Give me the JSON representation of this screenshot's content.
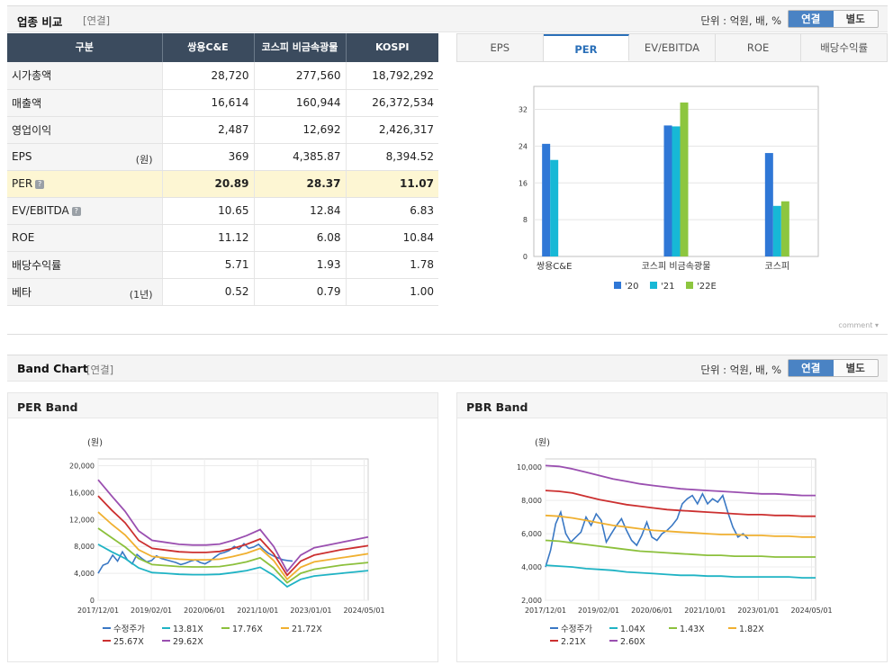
{
  "compare": {
    "title": "업종 비교",
    "tag": "[연결]",
    "unit": "단위 : 억원, 배, %",
    "toggle": [
      "연결",
      "별도"
    ],
    "headers": [
      "구분",
      "쌍용C&E",
      "코스피 비금속광물",
      "KOSPI"
    ],
    "rows": [
      {
        "label": "시가총액",
        "unit": "",
        "v": [
          "28,720",
          "277,560",
          "18,792,292"
        ]
      },
      {
        "label": "매출액",
        "unit": "",
        "v": [
          "16,614",
          "160,944",
          "26,372,534"
        ]
      },
      {
        "label": "영업이익",
        "unit": "",
        "v": [
          "2,487",
          "12,692",
          "2,426,317"
        ]
      },
      {
        "label": "EPS",
        "unit": "(원)",
        "v": [
          "369",
          "4,385.87",
          "8,394.52"
        ]
      },
      {
        "label": "PER",
        "unit": "",
        "v": [
          "20.89",
          "28.37",
          "11.07"
        ],
        "hl": true,
        "q": true
      },
      {
        "label": "EV/EBITDA",
        "unit": "",
        "v": [
          "10.65",
          "12.84",
          "6.83"
        ],
        "q": true
      },
      {
        "label": "ROE",
        "unit": "",
        "v": [
          "11.12",
          "6.08",
          "10.84"
        ]
      },
      {
        "label": "배당수익률",
        "unit": "",
        "v": [
          "5.71",
          "1.93",
          "1.78"
        ]
      },
      {
        "label": "베타",
        "unit": "(1년)",
        "v": [
          "0.52",
          "0.79",
          "1.00"
        ]
      }
    ],
    "tabs": [
      "EPS",
      "PER",
      "EV/EBITDA",
      "ROE",
      "배당수익률"
    ],
    "active_tab": "PER",
    "comment": "comment"
  },
  "chart_data": [
    {
      "type": "bar",
      "title": "PER",
      "categories": [
        "쌍용C&E",
        "코스피 비금속광물",
        "코스피"
      ],
      "series": [
        {
          "name": "'20",
          "color": "#2f77d6",
          "values": [
            24.5,
            28.5,
            22.5
          ]
        },
        {
          "name": "'21",
          "color": "#17b8d6",
          "values": [
            21,
            28.3,
            11
          ]
        },
        {
          "name": "'22E",
          "color": "#8dc63f",
          "values": [
            null,
            33.5,
            12
          ]
        }
      ],
      "yticks": [
        0,
        8,
        16,
        24,
        32
      ],
      "ylim": [
        0,
        37
      ]
    },
    {
      "type": "line",
      "title": "PER Band",
      "ylabel": "(원)",
      "xticks": [
        "2017/12/01",
        "2019/02/01",
        "2020/06/01",
        "2021/10/01",
        "2023/01/01",
        "2024/05/01"
      ],
      "yticks": [
        "0",
        "4,000",
        "8,000",
        "12,000",
        "16,000",
        "20,000"
      ],
      "ylim": [
        0,
        21000
      ],
      "series": [
        {
          "name": "수정주가",
          "color": "#3a78c4",
          "values": [
            4000,
            5200,
            5500,
            6700,
            5800,
            7200,
            6000,
            5400,
            6800,
            6200,
            5700,
            5900,
            6600,
            6200,
            6000,
            5800,
            5600,
            5300,
            5500,
            5800,
            6000,
            5600,
            5400,
            5800,
            6400,
            6900,
            7100,
            7400,
            8000,
            7600,
            8400,
            7700,
            7900,
            8300,
            7600,
            7000,
            6600,
            6300,
            6000,
            5900,
            5800
          ]
        },
        {
          "name": "13.81X",
          "color": "#1fb3c4",
          "values": [
            8300,
            7200,
            6200,
            4800,
            4100,
            4000,
            3850,
            3800,
            3800,
            3850,
            4100,
            4400,
            4900,
            3700,
            2000,
            3100,
            3600,
            3800,
            4000,
            4200,
            4400
          ]
        },
        {
          "name": "17.76X",
          "color": "#8cc03c",
          "values": [
            10700,
            9300,
            7900,
            6200,
            5300,
            5150,
            5000,
            4950,
            4950,
            5000,
            5300,
            5700,
            6300,
            4800,
            2600,
            4000,
            4600,
            4900,
            5200,
            5400,
            5600
          ]
        },
        {
          "name": "21.72X",
          "color": "#f0b030",
          "values": [
            13100,
            11300,
            9700,
            7500,
            6500,
            6300,
            6100,
            6000,
            6000,
            6100,
            6500,
            7000,
            7700,
            5900,
            3100,
            4900,
            5700,
            6000,
            6300,
            6600,
            6900
          ]
        },
        {
          "name": "25.67X",
          "color": "#cc3030",
          "values": [
            15500,
            13400,
            11500,
            8900,
            7700,
            7450,
            7200,
            7100,
            7100,
            7250,
            7700,
            8300,
            9100,
            6900,
            3700,
            5800,
            6700,
            7100,
            7500,
            7800,
            8100
          ]
        },
        {
          "name": "29.62X",
          "color": "#9a4fb0",
          "values": [
            17900,
            15500,
            13200,
            10300,
            8900,
            8600,
            8300,
            8200,
            8200,
            8350,
            8900,
            9600,
            10500,
            8000,
            4300,
            6700,
            7800,
            8200,
            8600,
            9000,
            9400
          ]
        }
      ]
    },
    {
      "type": "line",
      "title": "PBR Band",
      "ylabel": "(원)",
      "xticks": [
        "2017/12/01",
        "2019/02/01",
        "2020/06/01",
        "2021/10/01",
        "2023/01/01",
        "2024/05/01"
      ],
      "yticks": [
        "2,000",
        "4,000",
        "6,000",
        "8,000",
        "10,000"
      ],
      "ylim": [
        2000,
        10500
      ],
      "series": [
        {
          "name": "수정주가",
          "color": "#3a78c4",
          "values": [
            4000,
            5000,
            6600,
            7300,
            6000,
            5500,
            5800,
            6100,
            7000,
            6500,
            7200,
            6800,
            5500,
            6000,
            6500,
            6900,
            6200,
            5600,
            5300,
            5900,
            6700,
            5800,
            5600,
            6000,
            6200,
            6500,
            6900,
            7800,
            8100,
            8300,
            7800,
            8400,
            7800,
            8100,
            7900,
            8300,
            7300,
            6400,
            5800,
            6000,
            5700
          ]
        },
        {
          "name": "1.04X",
          "color": "#1fb3c4",
          "values": [
            4100,
            4050,
            4000,
            3900,
            3850,
            3800,
            3700,
            3650,
            3600,
            3550,
            3500,
            3500,
            3450,
            3450,
            3400,
            3400,
            3400,
            3400,
            3400,
            3350,
            3350
          ]
        },
        {
          "name": "1.43X",
          "color": "#8cc03c",
          "values": [
            5600,
            5550,
            5450,
            5350,
            5250,
            5150,
            5050,
            4950,
            4900,
            4850,
            4800,
            4750,
            4700,
            4700,
            4650,
            4650,
            4650,
            4600,
            4600,
            4600,
            4600
          ]
        },
        {
          "name": "1.82X",
          "color": "#f0b030",
          "values": [
            7100,
            7050,
            6950,
            6800,
            6650,
            6500,
            6400,
            6300,
            6200,
            6150,
            6100,
            6050,
            6000,
            5950,
            5950,
            5900,
            5900,
            5850,
            5850,
            5800,
            5800
          ]
        },
        {
          "name": "2.21X",
          "color": "#cc3030",
          "values": [
            8600,
            8550,
            8450,
            8250,
            8050,
            7900,
            7750,
            7650,
            7550,
            7450,
            7400,
            7350,
            7300,
            7250,
            7200,
            7150,
            7150,
            7100,
            7100,
            7050,
            7050
          ]
        },
        {
          "name": "2.60X",
          "color": "#9a4fb0",
          "values": [
            10100,
            10050,
            9900,
            9700,
            9500,
            9300,
            9150,
            9000,
            8900,
            8800,
            8700,
            8650,
            8600,
            8550,
            8500,
            8450,
            8400,
            8400,
            8350,
            8300,
            8300
          ]
        }
      ]
    }
  ],
  "band": {
    "title": "Band Chart",
    "tag": "[연결]",
    "unit": "단위 : 억원, 배, %",
    "toggle": [
      "연결",
      "별도"
    ],
    "per_title": "PER Band",
    "pbr_title": "PBR Band"
  }
}
